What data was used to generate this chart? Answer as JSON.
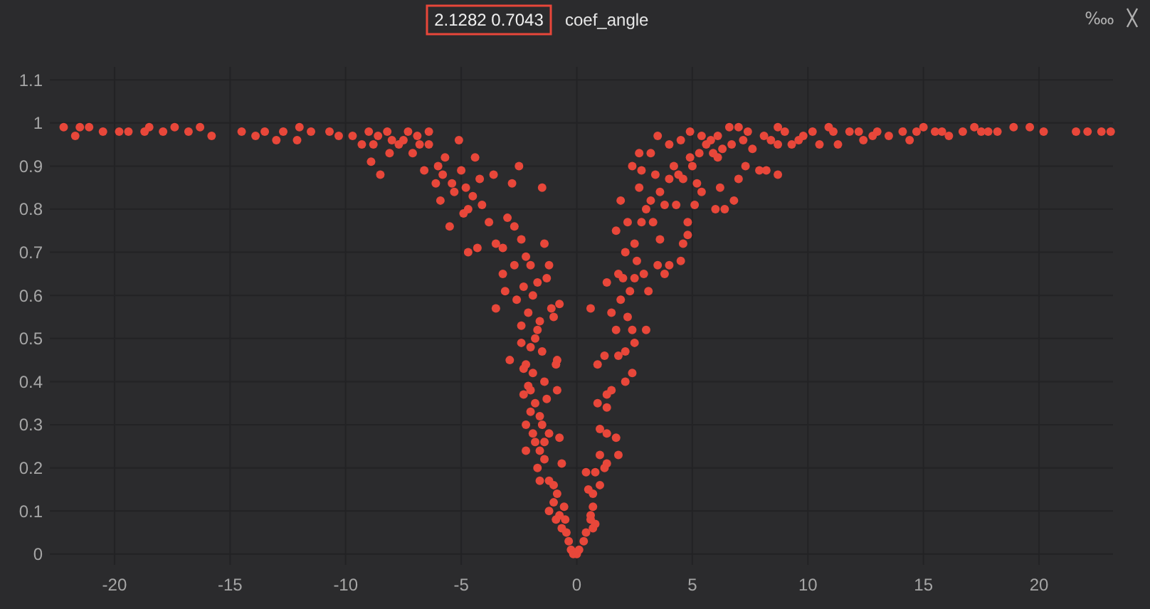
{
  "chart_data": {
    "type": "scatter",
    "title": "coef_angle",
    "annotations": [
      "2.1282 0.7043",
      "‱"
    ],
    "x": [
      -22.2,
      -21.7,
      -21.5,
      -21.1,
      -20.5,
      -19.8,
      -19.4,
      -18.7,
      -18.5,
      -17.9,
      -17.4,
      -16.8,
      -16.3,
      -15.8,
      -14.5,
      -13.9,
      -13.5,
      -13.0,
      -12.7,
      -12.1,
      -12.0,
      -11.5,
      -10.7,
      -10.3,
      -9.7,
      -9.3,
      -9.0,
      -8.8,
      -8.9,
      -8.5,
      -8.6,
      -8.2,
      -8.1,
      -7.7,
      -7.3,
      -7.1,
      -6.8,
      -6.4,
      -6.4,
      -6.6,
      -6.1,
      -5.9,
      -5.7,
      -5.5,
      -5.3,
      -5.1,
      -5.0,
      -4.9,
      -4.7,
      -4.7,
      -4.3,
      -4.2,
      -4.4,
      -4.1,
      -3.8,
      -3.6,
      -3.5,
      -3.5,
      -3.2,
      -3.2,
      -3.0,
      -3.1,
      -2.8,
      -2.7,
      -2.7,
      -2.6,
      -2.5,
      -2.4,
      -2.4,
      -2.3,
      -2.2,
      -2.1,
      -2.0,
      -1.9,
      -1.8,
      -1.7,
      -1.6,
      -1.5,
      -1.4,
      -1.3,
      -1.2,
      -1.1,
      -1.0,
      -0.75,
      -0.85,
      -2.9,
      -2.4,
      -2.2,
      -2.3,
      -2.1,
      -2.3,
      -2.0,
      -1.8,
      -2.2,
      -1.6,
      -1.4,
      -0.85,
      -0.9,
      -1.2,
      -1.8,
      -1.6,
      -2.2,
      -1.4,
      -1.7,
      -0.75,
      -0.65,
      -1.2,
      -1.6,
      -1.0,
      -0.85,
      -1.2,
      -0.55,
      -0.75,
      -0.65,
      -0.45,
      -0.35,
      -0.25,
      -0.15,
      -5.8,
      -6.0,
      -5.4,
      -4.8,
      -4.5,
      -7.5,
      -8.0,
      -6.9,
      -2.0,
      -1.9,
      -1.5,
      -1.7,
      -2.0,
      -1.5,
      -1.3,
      -1.9,
      -1.4,
      -1.0,
      -0.9,
      -0.5,
      0.0,
      0.1,
      0.3,
      0.4,
      0.6,
      0.6,
      0.7,
      0.7,
      0.8,
      0.5,
      0.7,
      1.0,
      0.4,
      0.8,
      1.2,
      1.3,
      1.0,
      1.8,
      1.0,
      1.3,
      1.7,
      0.9,
      1.3,
      1.5,
      1.3,
      2.1,
      2.4,
      0.9,
      1.2,
      1.8,
      2.1,
      2.5,
      0.6,
      1.7,
      2.4,
      3.0,
      1.3,
      2.0,
      2.5,
      3.1,
      1.9,
      2.3,
      1.8,
      2.9,
      1.7,
      2.1,
      2.6,
      3.5,
      3.8,
      4.5,
      4.0,
      2.2,
      2.8,
      3.3,
      3.6,
      4.6,
      4.8,
      1.9,
      2.7,
      3.2,
      3.8,
      4.3,
      4.8,
      5.1,
      6.0,
      6.4,
      6.8,
      2.4,
      2.8,
      3.4,
      4.0,
      4.6,
      5.2,
      5.4,
      6.2,
      2.7,
      3.2,
      4.0,
      4.5,
      4.9,
      5.3,
      5.9,
      6.1,
      6.7,
      7.0,
      7.3,
      7.9,
      8.2,
      8.7,
      3.5,
      4.9,
      5.4,
      6.1,
      6.6,
      7.0,
      7.4,
      7.6,
      8.1,
      8.7,
      8.7,
      9.3,
      9.8,
      10.2,
      10.5,
      10.9,
      11.1,
      11.3,
      11.8,
      12.2,
      12.4,
      13.0,
      13.5,
      14.1,
      14.4,
      14.7,
      15.0,
      15.5,
      16.1,
      16.7,
      17.2,
      17.8,
      18.2,
      18.9,
      19.6,
      20.2,
      21.6,
      22.1,
      22.7,
      23.1,
      4.2,
      4.4,
      5.0,
      5.6,
      3.6,
      3.0,
      2.5,
      1.5,
      2.2,
      5.8,
      6.3,
      7.2,
      9.0,
      9.6,
      12.8,
      15.8,
      17.5,
      8.4
    ],
    "values": [
      0.99,
      0.97,
      0.99,
      0.99,
      0.98,
      0.98,
      0.98,
      0.98,
      0.99,
      0.98,
      0.99,
      0.98,
      0.99,
      0.97,
      0.98,
      0.97,
      0.98,
      0.96,
      0.98,
      0.96,
      0.99,
      0.98,
      0.98,
      0.97,
      0.97,
      0.95,
      0.98,
      0.95,
      0.91,
      0.88,
      0.97,
      0.98,
      0.93,
      0.95,
      0.98,
      0.93,
      0.95,
      0.98,
      0.95,
      0.89,
      0.86,
      0.82,
      0.92,
      0.76,
      0.84,
      0.96,
      0.89,
      0.79,
      0.8,
      0.7,
      0.71,
      0.87,
      0.92,
      0.81,
      0.77,
      0.88,
      0.72,
      0.57,
      0.71,
      0.65,
      0.78,
      0.61,
      0.86,
      0.76,
      0.67,
      0.59,
      0.9,
      0.73,
      0.53,
      0.62,
      0.69,
      0.56,
      0.67,
      0.6,
      0.5,
      0.63,
      0.54,
      0.85,
      0.72,
      0.64,
      0.67,
      0.57,
      0.55,
      0.58,
      0.45,
      0.45,
      0.49,
      0.44,
      0.43,
      0.39,
      0.37,
      0.38,
      0.35,
      0.3,
      0.32,
      0.4,
      0.38,
      0.44,
      0.28,
      0.26,
      0.24,
      0.24,
      0.22,
      0.2,
      0.27,
      0.21,
      0.17,
      0.17,
      0.16,
      0.14,
      0.1,
      0.11,
      0.09,
      0.06,
      0.05,
      0.03,
      0.01,
      0.0,
      0.88,
      0.9,
      0.86,
      0.85,
      0.83,
      0.96,
      0.96,
      0.97,
      0.48,
      0.42,
      0.47,
      0.52,
      0.33,
      0.3,
      0.36,
      0.28,
      0.26,
      0.12,
      0.08,
      0.08,
      0.0,
      0.01,
      0.03,
      0.05,
      0.08,
      0.09,
      0.11,
      0.06,
      0.07,
      0.15,
      0.14,
      0.16,
      0.19,
      0.19,
      0.2,
      0.21,
      0.23,
      0.23,
      0.29,
      0.28,
      0.27,
      0.35,
      0.37,
      0.38,
      0.34,
      0.4,
      0.42,
      0.44,
      0.46,
      0.46,
      0.47,
      0.49,
      0.57,
      0.52,
      0.52,
      0.52,
      0.63,
      0.64,
      0.64,
      0.61,
      0.59,
      0.61,
      0.65,
      0.65,
      0.75,
      0.7,
      0.68,
      0.67,
      0.65,
      0.68,
      0.67,
      0.77,
      0.77,
      0.77,
      0.73,
      0.72,
      0.74,
      0.82,
      0.85,
      0.82,
      0.81,
      0.81,
      0.77,
      0.81,
      0.8,
      0.8,
      0.82,
      0.9,
      0.89,
      0.88,
      0.87,
      0.87,
      0.86,
      0.84,
      0.85,
      0.93,
      0.93,
      0.95,
      0.96,
      0.92,
      0.93,
      0.93,
      0.92,
      0.95,
      0.87,
      0.9,
      0.89,
      0.89,
      0.88,
      0.97,
      0.98,
      0.97,
      0.97,
      0.99,
      0.99,
      0.98,
      0.94,
      0.97,
      0.99,
      0.95,
      0.95,
      0.97,
      0.98,
      0.95,
      0.99,
      0.98,
      0.95,
      0.98,
      0.98,
      0.96,
      0.98,
      0.97,
      0.98,
      0.96,
      0.98,
      0.99,
      0.98,
      0.97,
      0.98,
      0.99,
      0.98,
      0.98,
      0.99,
      0.99,
      0.98,
      0.98,
      0.98,
      0.98,
      0.98,
      0.9,
      0.88,
      0.9,
      0.95,
      0.84,
      0.8,
      0.72,
      0.56,
      0.55,
      0.96,
      0.94,
      0.96,
      0.98,
      0.96,
      0.97,
      0.98,
      0.98,
      0.96
    ],
    "color": "#e8473a",
    "marker": "circle",
    "grid": true,
    "xlim": [
      -22.8,
      23.2
    ],
    "ylim": [
      -0.025,
      1.13
    ],
    "xticks": [
      -20,
      -15,
      -10,
      -5,
      0,
      5,
      10,
      15,
      20
    ],
    "yticks": [
      0,
      0.1,
      0.2,
      0.3,
      0.4,
      0.5,
      0.6,
      0.7,
      0.8,
      0.9,
      1,
      1.1
    ]
  }
}
